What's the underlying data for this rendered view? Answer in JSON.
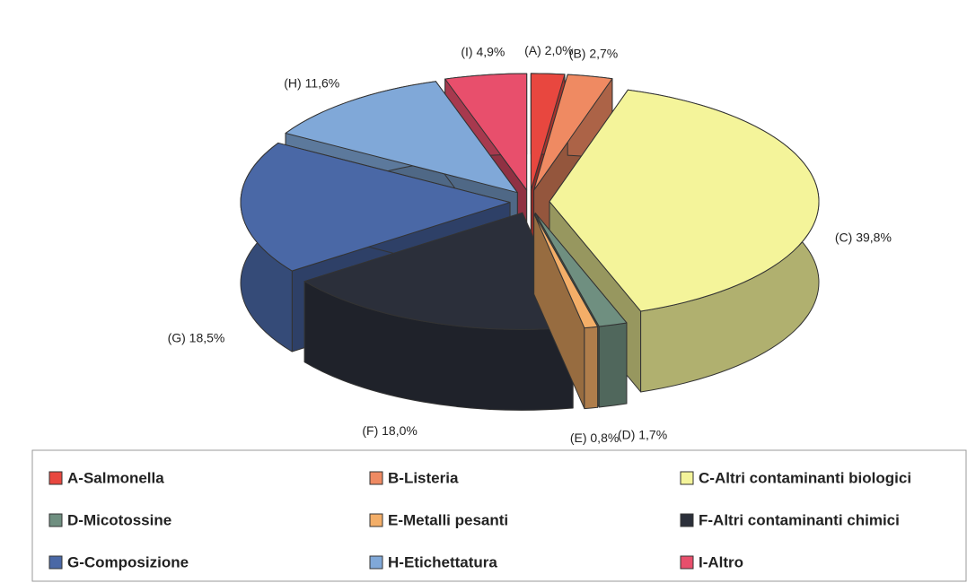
{
  "chart_data": {
    "type": "pie",
    "categories": [
      "A-Salmonella",
      "B-Listeria",
      "C-Altri contaminanti biologici",
      "D-Micotossine",
      "E-Metalli pesanti",
      "F-Altri contaminanti chimici",
      "G-Composizione",
      "H-Etichettatura",
      "I-Altro"
    ],
    "values": [
      2.0,
      2.7,
      39.8,
      1.7,
      0.8,
      18.0,
      18.5,
      11.6,
      4.9
    ],
    "value_labels": [
      "(A) 2,0%",
      "(B) 2,7%",
      "(C) 39,8%",
      "(D) 1,7%",
      "(E) 0,8%",
      "(F) 18,0%",
      "(G) 18,5%",
      "(H) 11,6%",
      "(I) 4,9%"
    ],
    "colors": [
      "#e8473f",
      "#ef8a62",
      "#f4f49a",
      "#6f8f80",
      "#f3ae68",
      "#2b2f3a",
      "#4a68a6",
      "#80a8d8",
      "#e84f6c"
    ],
    "legend": "bottom"
  }
}
